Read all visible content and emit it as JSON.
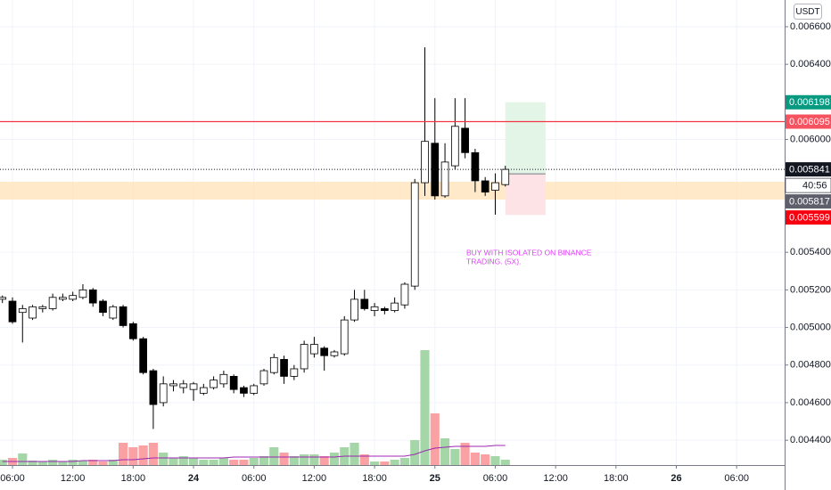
{
  "chart_data": {
    "type": "candlestick",
    "currency_button": "USDT",
    "xlim": [
      -1.24,
      76.77
    ],
    "xticks": [
      {
        "value": 0,
        "label": "06:00"
      },
      {
        "value": 6,
        "label": "12:00"
      },
      {
        "value": 12,
        "label": "18:00"
      },
      {
        "value": 18,
        "label": "24"
      },
      {
        "value": 24,
        "label": "06:00"
      },
      {
        "value": 30,
        "label": "12:00"
      },
      {
        "value": 36,
        "label": "18:00"
      },
      {
        "value": 42,
        "label": "25"
      },
      {
        "value": 48,
        "label": "06:00"
      },
      {
        "value": 54,
        "label": "12:00"
      },
      {
        "value": 60,
        "label": "18:00"
      },
      {
        "value": 66,
        "label": "26"
      },
      {
        "value": 72,
        "label": "06:00"
      }
    ],
    "ylim": [
      0.004268,
      0.006742
    ],
    "yticks": [
      {
        "value": 0.0066,
        "label": "0.006600"
      },
      {
        "value": 0.0064,
        "label": "0.006400"
      },
      {
        "value": 0.006,
        "label": "0.006000"
      },
      {
        "value": 0.0054,
        "label": "0.005400"
      },
      {
        "value": 0.0052,
        "label": "0.005200"
      },
      {
        "value": 0.005,
        "label": "0.005000"
      },
      {
        "value": 0.0048,
        "label": "0.004800"
      },
      {
        "value": 0.0046,
        "label": "0.004600"
      },
      {
        "value": 0.0044,
        "label": "0.004400"
      }
    ],
    "grid": true,
    "x": [
      -1,
      0,
      1,
      2,
      3,
      4,
      5,
      6,
      7,
      8,
      9,
      10,
      11,
      12,
      13,
      14,
      15,
      16,
      17,
      18,
      19,
      20,
      21,
      22,
      23,
      24,
      25,
      26,
      27,
      28,
      29,
      30,
      31,
      32,
      33,
      34,
      35,
      36,
      37,
      38,
      39,
      40,
      41,
      42,
      43,
      44,
      45,
      46,
      47,
      48,
      49
    ],
    "open": [
      0.00515,
      0.00514,
      0.00508,
      0.00505,
      0.0051,
      0.0051,
      0.00515,
      0.00515,
      0.00516,
      0.0052,
      0.00514,
      0.00505,
      0.00511,
      0.00502,
      0.00494,
      0.00477,
      0.0046,
      0.00469,
      0.00468,
      0.00467,
      0.00465,
      0.00468,
      0.0047,
      0.00474,
      0.00468,
      0.00465,
      0.0047,
      0.00476,
      0.00483,
      0.00474,
      0.00478,
      0.00486,
      0.00489,
      0.00485,
      0.00486,
      0.00504,
      0.00515,
      0.00509,
      0.0051,
      0.00509,
      0.00512,
      0.00522,
      0.00577,
      0.00598,
      0.0057,
      0.00586,
      0.00606,
      0.00593,
      0.00578,
      0.00573,
      0.00576
    ],
    "high": [
      0.00517,
      0.00516,
      0.00512,
      0.00512,
      0.00512,
      0.00518,
      0.00518,
      0.00519,
      0.00523,
      0.00521,
      0.00515,
      0.00512,
      0.00512,
      0.00503,
      0.00495,
      0.00478,
      0.00474,
      0.00472,
      0.00472,
      0.00471,
      0.0047,
      0.00474,
      0.00477,
      0.00475,
      0.00469,
      0.0047,
      0.00478,
      0.00486,
      0.00485,
      0.0048,
      0.00493,
      0.00495,
      0.0049,
      0.00488,
      0.00506,
      0.0052,
      0.0052,
      0.00513,
      0.00511,
      0.00516,
      0.00524,
      0.00579,
      0.00649,
      0.00622,
      0.00598,
      0.00622,
      0.00622,
      0.00595,
      0.0058,
      0.00582,
      0.00586
    ],
    "low": [
      0.00513,
      0.00502,
      0.00492,
      0.00504,
      0.00508,
      0.00509,
      0.00514,
      0.00514,
      0.00515,
      0.00511,
      0.00506,
      0.00504,
      0.005,
      0.00493,
      0.00475,
      0.00446,
      0.00458,
      0.00466,
      0.00465,
      0.00461,
      0.00464,
      0.00467,
      0.00468,
      0.00465,
      0.00463,
      0.00464,
      0.00469,
      0.00475,
      0.0047,
      0.00472,
      0.00476,
      0.00484,
      0.00477,
      0.00484,
      0.00485,
      0.00503,
      0.00509,
      0.00506,
      0.00507,
      0.00508,
      0.0051,
      0.0052,
      0.0057,
      0.00568,
      0.00569,
      0.00584,
      0.0059,
      0.00572,
      0.0057,
      0.0056,
      0.00575
    ],
    "close": [
      0.00516,
      0.00503,
      0.0051,
      0.00511,
      0.00511,
      0.00516,
      0.00516,
      0.00517,
      0.0052,
      0.00513,
      0.00508,
      0.00511,
      0.00501,
      0.00494,
      0.00476,
      0.00459,
      0.0047,
      0.0047,
      0.0047,
      0.0047,
      0.00468,
      0.00472,
      0.00475,
      0.00467,
      0.00465,
      0.00469,
      0.00477,
      0.00484,
      0.00474,
      0.00478,
      0.00491,
      0.00491,
      0.00485,
      0.00487,
      0.00504,
      0.00515,
      0.0051,
      0.00511,
      0.00509,
      0.00513,
      0.00523,
      0.00577,
      0.00599,
      0.0057,
      0.00588,
      0.00607,
      0.00593,
      0.00578,
      0.00572,
      0.00577,
      0.005841
    ],
    "volume": [
      6,
      8,
      13,
      5,
      4,
      6,
      4,
      6,
      5,
      6,
      4,
      6,
      25,
      20,
      22,
      25,
      14,
      8,
      10,
      8,
      6,
      6,
      8,
      6,
      6,
      8,
      10,
      20,
      14,
      10,
      12,
      12,
      10,
      14,
      20,
      25,
      12,
      4,
      4,
      6,
      8,
      28,
      129,
      58,
      30,
      18,
      25,
      14,
      12,
      10,
      6
    ],
    "volume_ma": [
      4,
      4,
      4,
      4,
      4,
      4,
      4,
      4,
      5,
      5,
      5,
      5,
      6,
      6,
      7,
      8,
      8,
      8,
      8,
      8,
      8,
      8,
      8,
      9,
      9,
      9,
      9,
      9,
      9,
      9,
      9,
      9,
      9,
      9,
      10,
      10,
      10,
      10,
      10,
      10,
      10,
      12,
      16,
      19,
      20,
      21,
      21,
      21,
      21,
      22,
      22
    ],
    "up_color": "#ffffff",
    "down_color": "#000000",
    "volume_up_color": "#a5d6a7",
    "volume_down_color": "#faa1a4",
    "ma_color": "#9c27b0",
    "zone": [
      0.00568,
      0.005775
    ],
    "zone_color": "#ffe0b2",
    "position": {
      "x": [
        49,
        53
      ],
      "entry": 0.005817,
      "target": 0.006198,
      "stop": 0.005599
    },
    "price_line": {
      "value": 0.006095,
      "color": "#f23645"
    },
    "current_price": {
      "value": 0.005841,
      "color": "#131722"
    },
    "badges": [
      {
        "value": 0.006198,
        "color": "#089981"
      },
      {
        "value": 0.006095,
        "color": "#f7525f"
      },
      {
        "value": 0.005841,
        "color": "#131722"
      },
      {
        "value": 0.005817,
        "color": "#5d606b"
      },
      {
        "value": 0.005599,
        "color": "#f7000f"
      }
    ],
    "countdown": "40:56",
    "annotation": [
      "BUY WITH ISOLATED ON BINANCE",
      "TRADING. (5X)."
    ]
  }
}
